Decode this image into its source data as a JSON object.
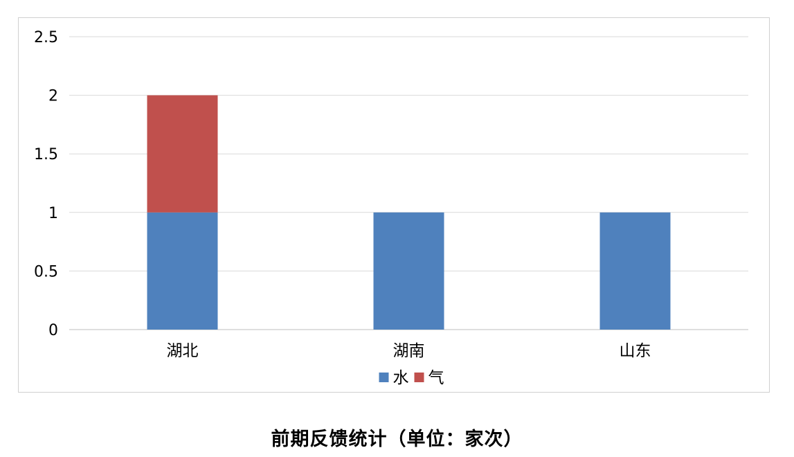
{
  "caption": "前期反馈统计（单位：家次）",
  "chart_data": {
    "type": "bar",
    "stacked": true,
    "categories": [
      "湖北",
      "湖南",
      "山东"
    ],
    "series": [
      {
        "name": "水",
        "values": [
          1,
          1,
          1
        ],
        "color": "#4f81bd"
      },
      {
        "name": "气",
        "values": [
          1,
          0,
          0
        ],
        "color": "#c0504d"
      }
    ],
    "ylim": [
      0,
      2.5
    ],
    "yticks": [
      0,
      0.5,
      1,
      1.5,
      2,
      2.5
    ],
    "ytick_labels": [
      "0",
      "0.5",
      "1",
      "1.5",
      "2",
      "2.5"
    ],
    "grid": true,
    "legend_position": "bottom",
    "gridline_color": "#d9d9d9",
    "axis_color": "#bfbfbf"
  }
}
